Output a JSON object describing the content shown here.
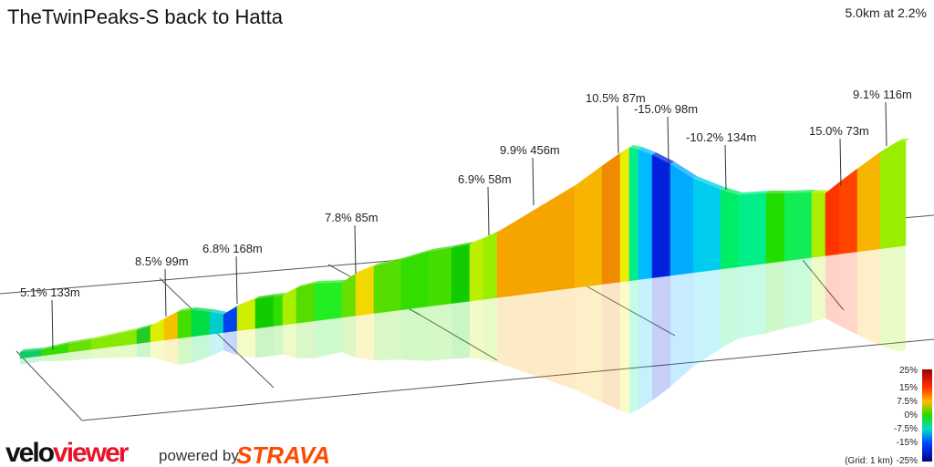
{
  "header": {
    "title": "TheTwinPeaks-S back to Hatta",
    "summary": "5.0km at 2.2%"
  },
  "chart_data": {
    "type": "3d-elevation-profile",
    "annotations": [
      {
        "label": "5.1% 133m",
        "grade": 5.1,
        "length_m": 133
      },
      {
        "label": "8.5% 99m",
        "grade": 8.5,
        "length_m": 99
      },
      {
        "label": "6.8% 168m",
        "grade": 6.8,
        "length_m": 168
      },
      {
        "label": "7.8% 85m",
        "grade": 7.8,
        "length_m": 85
      },
      {
        "label": "6.9% 58m",
        "grade": 6.9,
        "length_m": 58
      },
      {
        "label": "9.9% 456m",
        "grade": 9.9,
        "length_m": 456
      },
      {
        "label": "10.5% 87m",
        "grade": 10.5,
        "length_m": 87
      },
      {
        "label": "-15.0% 98m",
        "grade": -15.0,
        "length_m": 98
      },
      {
        "label": "-10.2% 134m",
        "grade": -10.2,
        "length_m": 134
      },
      {
        "label": "15.0% 73m",
        "grade": 15.0,
        "length_m": 73
      },
      {
        "label": "9.1% 116m",
        "grade": 9.1,
        "length_m": 116
      }
    ],
    "legend": {
      "ticks": [
        "25%",
        "15%",
        "7.5%",
        "0%",
        "-7.5%",
        "-15%",
        "-25%"
      ],
      "grid_note": "(Grid: 1 km)",
      "range": [
        -25,
        25
      ]
    },
    "colors": {
      "high": "#a00000",
      "zero": "#22dd00",
      "low": "#00008a"
    }
  },
  "footer": {
    "logo_a": "velo",
    "logo_b": "viewer",
    "powered": "powered by",
    "strava": "STRAVA"
  }
}
